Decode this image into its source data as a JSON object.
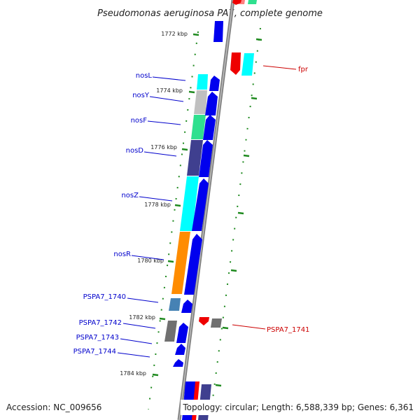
{
  "title": "Pseudomonas aeruginosa PA7, complete genome",
  "footer": {
    "accession": "Accession: NC_009656",
    "topology": "Topology: circular; Length: 6,588,339 bp; Genes: 6,361"
  },
  "colors": {
    "background": "#ffffff",
    "backbone": "#808080",
    "tick": "#1f8a1f",
    "label_forward": "#0000cc",
    "label_reverse": "#cc0000",
    "cds_forward": "#0000ee",
    "cds_reverse": "#ee0000"
  },
  "ruler": [
    "1772 kbp",
    "1774 kbp",
    "1776 kbp",
    "1778 kbp",
    "1780 kbp",
    "1782 kbp",
    "1784 kbp"
  ],
  "gene_labels": [
    {
      "text": "nosL",
      "strand": "forward"
    },
    {
      "text": "nosY",
      "strand": "forward"
    },
    {
      "text": "nosF",
      "strand": "forward"
    },
    {
      "text": "nosD",
      "strand": "forward"
    },
    {
      "text": "nosZ",
      "strand": "forward"
    },
    {
      "text": "nosR",
      "strand": "forward"
    },
    {
      "text": "PSPA7_1740",
      "strand": "forward"
    },
    {
      "text": "PSPA7_1742",
      "strand": "forward"
    },
    {
      "text": "PSPA7_1743",
      "strand": "forward"
    },
    {
      "text": "PSPA7_1744",
      "strand": "forward"
    },
    {
      "text": "fpr",
      "strand": "reverse"
    },
    {
      "text": "PSPA7_1741",
      "strand": "reverse"
    }
  ],
  "cog_colors": [
    "#00ffff",
    "#c0c0c0",
    "#2fe08f",
    "#3f3f8f",
    "#ff8c00",
    "#4682b4",
    "#707070",
    "#ff0000"
  ]
}
